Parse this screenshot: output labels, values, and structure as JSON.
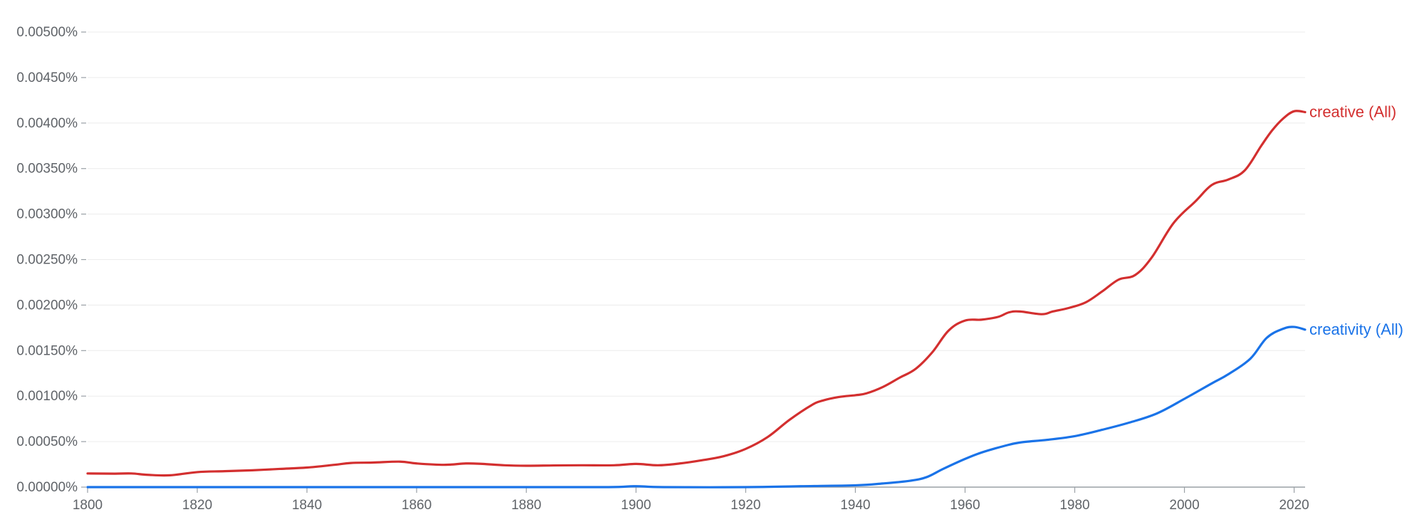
{
  "chart_data": {
    "type": "line",
    "title": "",
    "xlabel": "",
    "ylabel": "",
    "xlim": [
      1800,
      2022
    ],
    "ylim": [
      0,
      0.005
    ],
    "grid": true,
    "legend": "end-of-line labels",
    "x_ticks": [
      1800,
      1820,
      1840,
      1860,
      1880,
      1900,
      1920,
      1940,
      1960,
      1980,
      2000,
      2020
    ],
    "x_tick_labels": [
      "1800",
      "1820",
      "1840",
      "1860",
      "1880",
      "1900",
      "1920",
      "1940",
      "1960",
      "1980",
      "2000",
      "2020"
    ],
    "y_ticks": [
      0,
      0.0005,
      0.001,
      0.0015,
      0.002,
      0.0025,
      0.003,
      0.0035,
      0.004,
      0.0045,
      0.005
    ],
    "y_tick_labels": [
      "0.00000%",
      "0.00050%",
      "0.00100%",
      "0.00150%",
      "0.00200%",
      "0.00250%",
      "0.00300%",
      "0.00350%",
      "0.00400%",
      "0.00450%",
      "0.00500%"
    ],
    "series": [
      {
        "name": "creative (All)",
        "color": "#d32f2f",
        "x": [
          1800,
          1805,
          1808,
          1811,
          1815,
          1820,
          1825,
          1830,
          1835,
          1840,
          1845,
          1848,
          1852,
          1857,
          1860,
          1865,
          1869,
          1872,
          1876,
          1880,
          1885,
          1890,
          1896,
          1900,
          1904,
          1908,
          1912,
          1916,
          1920,
          1924,
          1928,
          1932,
          1934,
          1937,
          1940,
          1942,
          1945,
          1948,
          1951,
          1954,
          1957,
          1960,
          1963,
          1966,
          1968,
          1970,
          1974,
          1976,
          1979,
          1982,
          1985,
          1988,
          1991,
          1994,
          1998,
          2002,
          2005,
          2008,
          2011,
          2014,
          2016,
          2018,
          2020,
          2022
        ],
        "y": [
          0.00015,
          0.000148,
          0.00015,
          0.000135,
          0.00013,
          0.000165,
          0.000175,
          0.000185,
          0.0002,
          0.000215,
          0.000245,
          0.000265,
          0.00027,
          0.00028,
          0.00026,
          0.000245,
          0.00026,
          0.000255,
          0.00024,
          0.000235,
          0.000238,
          0.00024,
          0.00024,
          0.000255,
          0.00024,
          0.00026,
          0.000295,
          0.00034,
          0.00042,
          0.00055,
          0.00074,
          0.0009,
          0.00095,
          0.00099,
          0.00101,
          0.00103,
          0.0011,
          0.0012,
          0.0013,
          0.00148,
          0.00172,
          0.00183,
          0.00184,
          0.00187,
          0.00192,
          0.00193,
          0.0019,
          0.00193,
          0.00197,
          0.00203,
          0.00215,
          0.00228,
          0.00233,
          0.00252,
          0.0029,
          0.00314,
          0.00332,
          0.00338,
          0.00348,
          0.00375,
          0.00392,
          0.00405,
          0.00413,
          0.00412
        ]
      },
      {
        "name": "creativity (All)",
        "color": "#1a73e8",
        "x": [
          1800,
          1820,
          1840,
          1860,
          1880,
          1895,
          1900,
          1905,
          1920,
          1930,
          1940,
          1945,
          1950,
          1953,
          1956,
          1960,
          1963,
          1967,
          1970,
          1975,
          1980,
          1985,
          1990,
          1995,
          2000,
          2005,
          2008,
          2012,
          2015,
          2018,
          2020,
          2022
        ],
        "y": [
          0.0,
          0.0,
          0.0,
          0.0,
          0.0,
          0.0,
          1e-05,
          0.0,
          0.0,
          1e-05,
          2e-05,
          4e-05,
          7e-05,
          0.00011,
          0.0002,
          0.00031,
          0.00038,
          0.00045,
          0.00049,
          0.00052,
          0.00056,
          0.00063,
          0.00071,
          0.00081,
          0.00097,
          0.00114,
          0.00124,
          0.00141,
          0.00164,
          0.00174,
          0.00176,
          0.00173
        ]
      }
    ]
  }
}
